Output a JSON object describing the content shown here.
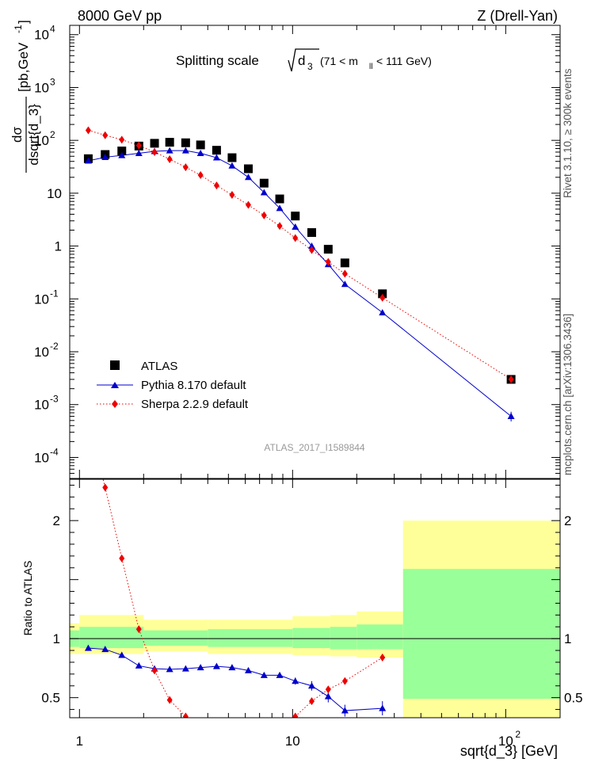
{
  "header": {
    "left": "8000 GeV pp",
    "right": "Z (Drell-Yan)"
  },
  "side_labels": {
    "top": "Rivet 3.1.10, ≥ 300k events",
    "bottom": "mcplots.cern.ch [arXiv:1306.3436]"
  },
  "chart_data": [
    {
      "type": "scatter",
      "panel": "main",
      "title": "Splitting scale √d₃ (71 < m_ll < 111 GeV)",
      "title_parts": {
        "prefix": "Splitting scale",
        "sqrt_arg": "d",
        "sqrt_sub": "3",
        "range_open": "(71 < m",
        "range_sub": "ll",
        "range_close": " < 111 GeV)"
      },
      "ylabel": "dσ / dsqrt{d_3} [pb,GeV^-1]",
      "ylabel_parts": {
        "num": "dσ",
        "den": "dsqrt{d_3}",
        "unit": "[pb,GeV",
        "unit_exp": "-1",
        "unit_close": "]"
      },
      "xscale": "log",
      "yscale": "log",
      "xlim": [
        0.9,
        180
      ],
      "ylim": [
        4e-05,
        15000
      ],
      "analysis_tag": "ATLAS_2017_I1589844",
      "legend_position": "lower-left",
      "y_ticks": [
        {
          "v": 0.0001,
          "base": "10",
          "exp": "-4"
        },
        {
          "v": 0.001,
          "base": "10",
          "exp": "-3"
        },
        {
          "v": 0.01,
          "base": "10",
          "exp": "-2"
        },
        {
          "v": 0.1,
          "base": "10",
          "exp": "-1"
        },
        {
          "v": 1,
          "base": "1",
          "exp": ""
        },
        {
          "v": 10,
          "base": "10",
          "exp": ""
        },
        {
          "v": 100,
          "base": "10",
          "exp": "2"
        },
        {
          "v": 1000,
          "base": "10",
          "exp": "3"
        },
        {
          "v": 10000,
          "base": "10",
          "exp": "4"
        }
      ],
      "series": [
        {
          "name": "ATLAS",
          "style": "square",
          "color": "#000000",
          "points": [
            {
              "x": 1.1,
              "y": 45
            },
            {
              "x": 1.32,
              "y": 54
            },
            {
              "x": 1.58,
              "y": 63
            },
            {
              "x": 1.9,
              "y": 78
            },
            {
              "x": 2.25,
              "y": 88
            },
            {
              "x": 2.65,
              "y": 92
            },
            {
              "x": 3.15,
              "y": 90
            },
            {
              "x": 3.7,
              "y": 82
            },
            {
              "x": 4.4,
              "y": 65
            },
            {
              "x": 5.2,
              "y": 47
            },
            {
              "x": 6.2,
              "y": 29
            },
            {
              "x": 7.35,
              "y": 15.5
            },
            {
              "x": 8.7,
              "y": 7.8
            },
            {
              "x": 10.3,
              "y": 3.7
            },
            {
              "x": 12.3,
              "y": 1.8
            },
            {
              "x": 14.7,
              "y": 0.87
            },
            {
              "x": 17.6,
              "y": 0.48
            },
            {
              "x": 26.4,
              "y": 0.125
            },
            {
              "x": 106,
              "y": 0.003
            }
          ]
        },
        {
          "name": "Pythia 8.170 default",
          "style": "triangle-line",
          "color": "#0000cc",
          "points": [
            {
              "x": 1.1,
              "y": 41
            },
            {
              "x": 1.32,
              "y": 48
            },
            {
              "x": 1.58,
              "y": 52
            },
            {
              "x": 1.9,
              "y": 57
            },
            {
              "x": 2.25,
              "y": 62
            },
            {
              "x": 2.65,
              "y": 64
            },
            {
              "x": 3.15,
              "y": 64
            },
            {
              "x": 3.7,
              "y": 57
            },
            {
              "x": 4.4,
              "y": 47
            },
            {
              "x": 5.2,
              "y": 33
            },
            {
              "x": 6.2,
              "y": 20
            },
            {
              "x": 7.35,
              "y": 10.3
            },
            {
              "x": 8.7,
              "y": 5.2
            },
            {
              "x": 10.3,
              "y": 2.3
            },
            {
              "x": 12.3,
              "y": 1.0
            },
            {
              "x": 14.7,
              "y": 0.45
            },
            {
              "x": 17.6,
              "y": 0.19
            },
            {
              "x": 26.4,
              "y": 0.055
            },
            {
              "x": 106,
              "y": 0.0006
            }
          ]
        },
        {
          "name": "Sherpa 2.2.9 default",
          "style": "diamond-dotted",
          "color": "#ee0000",
          "points": [
            {
              "x": 1.1,
              "y": 155
            },
            {
              "x": 1.32,
              "y": 125
            },
            {
              "x": 1.58,
              "y": 103
            },
            {
              "x": 1.9,
              "y": 80
            },
            {
              "x": 2.25,
              "y": 60
            },
            {
              "x": 2.65,
              "y": 44
            },
            {
              "x": 3.15,
              "y": 31
            },
            {
              "x": 3.7,
              "y": 22
            },
            {
              "x": 4.4,
              "y": 14
            },
            {
              "x": 5.2,
              "y": 9.3
            },
            {
              "x": 6.2,
              "y": 6.0
            },
            {
              "x": 7.35,
              "y": 3.8
            },
            {
              "x": 8.7,
              "y": 2.4
            },
            {
              "x": 10.3,
              "y": 1.42
            },
            {
              "x": 12.3,
              "y": 0.84
            },
            {
              "x": 14.7,
              "y": 0.5
            },
            {
              "x": 17.6,
              "y": 0.3
            },
            {
              "x": 26.4,
              "y": 0.105
            },
            {
              "x": 106,
              "y": 0.003
            }
          ]
        }
      ]
    },
    {
      "type": "scatter",
      "panel": "ratio",
      "ylabel": "Ratio to ATLAS",
      "xlabel": "sqrt{d_3} [GeV]",
      "xscale": "log",
      "xlim": [
        0.9,
        180
      ],
      "ylim": [
        0.33,
        2.35
      ],
      "y_tick_labels": [
        {
          "v": 0.5,
          "label": "0.5"
        },
        {
          "v": 1,
          "label": "1"
        },
        {
          "v": 2,
          "label": "2"
        }
      ],
      "x_tick_labels": [
        {
          "v": 1,
          "base": "1",
          "exp": ""
        },
        {
          "v": 10,
          "base": "10",
          "exp": ""
        },
        {
          "v": 100,
          "base": "10",
          "exp": "2"
        }
      ],
      "bands": [
        {
          "x0": 0.9,
          "x1": 1.0,
          "yellow": [
            0.87,
            1.13
          ],
          "green": [
            0.93,
            1.07
          ]
        },
        {
          "x0": 1.0,
          "x1": 2.0,
          "yellow": [
            0.87,
            1.2
          ],
          "green": [
            0.92,
            1.1
          ]
        },
        {
          "x0": 2.0,
          "x1": 4.0,
          "yellow": [
            0.89,
            1.16
          ],
          "green": [
            0.94,
            1.07
          ]
        },
        {
          "x0": 4.0,
          "x1": 10.0,
          "yellow": [
            0.87,
            1.16
          ],
          "green": [
            0.93,
            1.08
          ]
        },
        {
          "x0": 10.0,
          "x1": 15.0,
          "yellow": [
            0.86,
            1.19
          ],
          "green": [
            0.92,
            1.09
          ]
        },
        {
          "x0": 15.0,
          "x1": 20.0,
          "yellow": [
            0.85,
            1.2
          ],
          "green": [
            0.91,
            1.1
          ]
        },
        {
          "x0": 20.0,
          "x1": 33.0,
          "yellow": [
            0.84,
            1.23
          ],
          "green": [
            0.91,
            1.12
          ]
        },
        {
          "x0": 33.0,
          "x1": 180.0,
          "yellow": [
            0.33,
            2.0
          ],
          "green": [
            0.49,
            1.59
          ]
        }
      ],
      "reference_line": 1.0,
      "series": [
        {
          "name": "Pythia 8.170 default",
          "color": "#0000cc",
          "points": [
            {
              "x": 1.1,
              "y": 0.92
            },
            {
              "x": 1.32,
              "y": 0.91
            },
            {
              "x": 1.58,
              "y": 0.86
            },
            {
              "x": 1.9,
              "y": 0.77
            },
            {
              "x": 2.25,
              "y": 0.745
            },
            {
              "x": 2.65,
              "y": 0.74
            },
            {
              "x": 3.15,
              "y": 0.745
            },
            {
              "x": 3.7,
              "y": 0.755
            },
            {
              "x": 4.4,
              "y": 0.765
            },
            {
              "x": 5.2,
              "y": 0.755
            },
            {
              "x": 6.2,
              "y": 0.73
            },
            {
              "x": 7.35,
              "y": 0.69
            },
            {
              "x": 8.7,
              "y": 0.69
            },
            {
              "x": 10.3,
              "y": 0.64
            },
            {
              "x": 12.3,
              "y": 0.6
            },
            {
              "x": 14.7,
              "y": 0.51
            },
            {
              "x": 17.6,
              "y": 0.39
            },
            {
              "x": 26.4,
              "y": 0.41
            }
          ]
        },
        {
          "name": "Sherpa 2.2.9 default",
          "color": "#ee0000",
          "points": [
            {
              "x": 1.32,
              "y": 2.28
            },
            {
              "x": 1.58,
              "y": 1.68
            },
            {
              "x": 1.9,
              "y": 1.08
            },
            {
              "x": 2.25,
              "y": 0.73
            },
            {
              "x": 2.65,
              "y": 0.48
            },
            {
              "x": 3.15,
              "y": 0.34
            },
            {
              "x": 10.3,
              "y": 0.34
            },
            {
              "x": 12.3,
              "y": 0.47
            },
            {
              "x": 14.7,
              "y": 0.57
            },
            {
              "x": 17.6,
              "y": 0.64
            },
            {
              "x": 26.4,
              "y": 0.84
            }
          ]
        }
      ]
    }
  ]
}
